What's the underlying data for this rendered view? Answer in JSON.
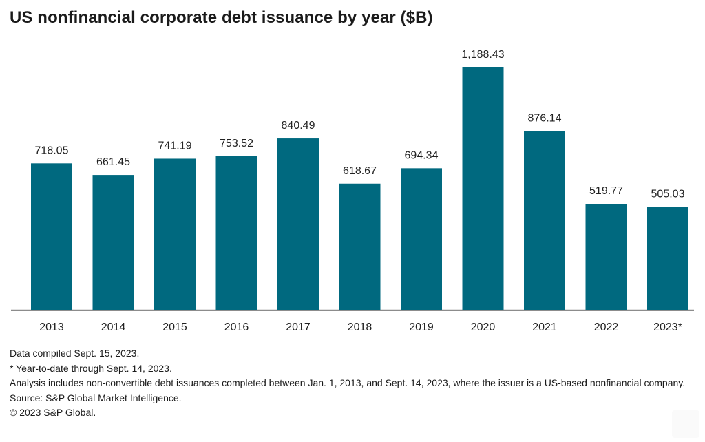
{
  "title": "US nonfinancial corporate debt issuance by year ($B)",
  "chart_data": {
    "type": "bar",
    "title": "US nonfinancial corporate debt issuance by year ($B)",
    "xlabel": "",
    "ylabel": "",
    "categories": [
      "2013",
      "2014",
      "2015",
      "2016",
      "2017",
      "2018",
      "2019",
      "2020",
      "2021",
      "2022",
      "2023*"
    ],
    "values": [
      718.05,
      661.45,
      741.19,
      753.52,
      840.49,
      618.67,
      694.34,
      1188.43,
      876.14,
      519.77,
      505.03
    ],
    "value_labels": [
      "718.05",
      "661.45",
      "741.19",
      "753.52",
      "840.49",
      "618.67",
      "694.34",
      "1,188.43",
      "876.14",
      "519.77",
      "505.03"
    ],
    "ylim": [
      0,
      1188.43
    ],
    "grid": false,
    "bar_color": "#00697f",
    "axis_color": "#8c8c8c"
  },
  "notes": {
    "compiled": "Data compiled Sept. 15, 2023.",
    "ytd": "* Year-to-date through Sept. 14, 2023.",
    "analysis": "Analysis includes non-convertible debt issuances completed between Jan. 1, 2013, and Sept. 14, 2023, where the issuer is a US-based nonfinancial company.",
    "source": "Source: S&P Global Market Intelligence.",
    "copyright": "© 2023 S&P Global."
  }
}
